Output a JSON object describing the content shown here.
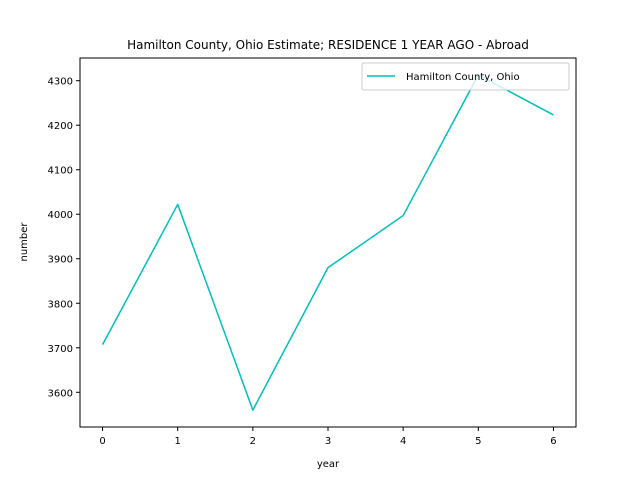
{
  "chart_data": {
    "type": "line",
    "title": "Hamilton County, Ohio Estimate; RESIDENCE 1 YEAR AGO - Abroad",
    "xlabel": "year",
    "ylabel": "number",
    "x": [
      0,
      1,
      2,
      3,
      4,
      5,
      6
    ],
    "series": [
      {
        "name": "Hamilton County, Ohio",
        "color": "#00bfbf",
        "values": [
          3707,
          4022,
          3560,
          3880,
          3997,
          4313,
          4223
        ]
      }
    ],
    "xticks": [
      0,
      1,
      2,
      3,
      4,
      5,
      6
    ],
    "yticks": [
      3600,
      3700,
      3800,
      3900,
      4000,
      4100,
      4200,
      4300
    ],
    "xlim": [
      -0.3,
      6.3
    ],
    "ylim": [
      3522,
      4351
    ],
    "grid": false,
    "legend_position": "top-right"
  }
}
